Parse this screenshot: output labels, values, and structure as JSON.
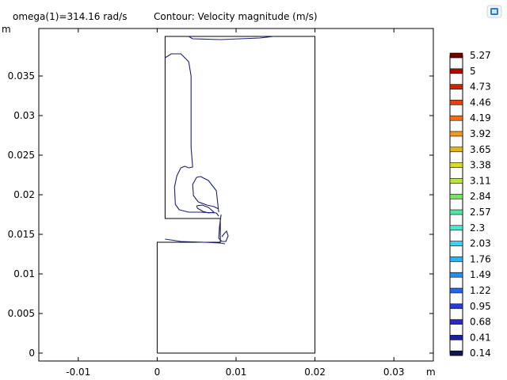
{
  "header": {
    "parameter": "omega(1)=314.16 rad/s",
    "title": "Contour: Velocity magnitude (m/s)"
  },
  "toolbar": {
    "icon": "plot-window-icon",
    "icon_color": "#2a7fd4"
  },
  "chart_data": {
    "type": "contour",
    "title": "Contour: Velocity magnitude (m/s)",
    "xlabel": "m",
    "ylabel": "m",
    "xlim": [
      -0.015,
      0.035
    ],
    "ylim": [
      -0.001,
      0.041
    ],
    "x_ticks": [
      {
        "value": -0.01,
        "label": "-0.01"
      },
      {
        "value": 0,
        "label": "0"
      },
      {
        "value": 0.01,
        "label": "0.01"
      },
      {
        "value": 0.02,
        "label": "0.02"
      },
      {
        "value": 0.03,
        "label": "0.03"
      }
    ],
    "y_ticks": [
      {
        "value": 0,
        "label": "0"
      },
      {
        "value": 0.005,
        "label": "0.005"
      },
      {
        "value": 0.01,
        "label": "0.01"
      },
      {
        "value": 0.015,
        "label": "0.015"
      },
      {
        "value": 0.02,
        "label": "0.02"
      },
      {
        "value": 0.025,
        "label": "0.025"
      },
      {
        "value": 0.03,
        "label": "0.03"
      },
      {
        "value": 0.035,
        "label": "0.035"
      }
    ],
    "geometry": [
      [
        0,
        0
      ],
      [
        0.02,
        0
      ],
      [
        0.02,
        0.04
      ],
      [
        0.001,
        0.04
      ],
      [
        0.001,
        0.017
      ],
      [
        0.008,
        0.017
      ],
      [
        0.008,
        0.014
      ],
      [
        0,
        0.014
      ],
      [
        0,
        0
      ]
    ],
    "contours": [
      {
        "level": 0.14,
        "color": "#1e1e78",
        "points": [
          [
            0.004,
            0.04
          ],
          [
            0.0045,
            0.0397
          ],
          [
            0.008,
            0.0396
          ],
          [
            0.013,
            0.0398
          ],
          [
            0.0148,
            0.04
          ]
        ]
      },
      {
        "level": 0.14,
        "color": "#1e1e78",
        "points": [
          [
            0.001,
            0.0373
          ],
          [
            0.0018,
            0.0378
          ],
          [
            0.003,
            0.0378
          ],
          [
            0.004,
            0.0368
          ],
          [
            0.0043,
            0.035
          ],
          [
            0.0043,
            0.026
          ],
          [
            0.0045,
            0.0235
          ],
          [
            0.004,
            0.0234
          ],
          [
            0.0035,
            0.0236
          ],
          [
            0.003,
            0.0234
          ],
          [
            0.0025,
            0.0224
          ],
          [
            0.0022,
            0.021
          ],
          [
            0.0023,
            0.0188
          ],
          [
            0.0028,
            0.0181
          ],
          [
            0.004,
            0.0178
          ],
          [
            0.0055,
            0.0178
          ],
          [
            0.0075,
            0.0177
          ],
          [
            0.0078,
            0.0173
          ]
        ]
      },
      {
        "level": 0.14,
        "color": "#1e1e78",
        "points": [
          [
            0.0078,
            0.0178
          ],
          [
            0.0075,
            0.0205
          ],
          [
            0.0065,
            0.0218
          ],
          [
            0.0055,
            0.0223
          ],
          [
            0.005,
            0.0222
          ],
          [
            0.0045,
            0.0213
          ],
          [
            0.0046,
            0.0199
          ],
          [
            0.0052,
            0.0191
          ],
          [
            0.0063,
            0.0187
          ],
          [
            0.0072,
            0.0185
          ],
          [
            0.0078,
            0.0182
          ]
        ]
      },
      {
        "level": 0.14,
        "color": "#1e1e78",
        "points": [
          [
            0.005,
            0.0186
          ],
          [
            0.0057,
            0.0187
          ],
          [
            0.0065,
            0.0184
          ],
          [
            0.0072,
            0.0178
          ],
          [
            0.0065,
            0.0177
          ],
          [
            0.0058,
            0.0179
          ],
          [
            0.0051,
            0.0183
          ],
          [
            0.005,
            0.0186
          ]
        ]
      },
      {
        "level": 0.14,
        "color": "#1e1e78",
        "points": [
          [
            0.0081,
            0.0175
          ],
          [
            0.0079,
            0.016
          ],
          [
            0.0078,
            0.0145
          ],
          [
            0.0082,
            0.0141
          ],
          [
            0.0087,
            0.0141
          ],
          [
            0.009,
            0.0148
          ],
          [
            0.0088,
            0.0154
          ],
          [
            0.0085,
            0.0151
          ],
          [
            0.0082,
            0.0147
          ]
        ]
      },
      {
        "level": 0.14,
        "color": "#1e1e78",
        "points": [
          [
            0.001,
            0.0144
          ],
          [
            0.003,
            0.0141
          ],
          [
            0.006,
            0.014
          ],
          [
            0.008,
            0.0139
          ],
          [
            0.0086,
            0.0138
          ]
        ]
      }
    ],
    "legend": {
      "placement": "right",
      "levels": [
        {
          "label": "5.27",
          "color": "#6e0000"
        },
        {
          "label": "5",
          "color": "#b40000"
        },
        {
          "label": "4.73",
          "color": "#dc1e00"
        },
        {
          "label": "4.46",
          "color": "#f03c0a"
        },
        {
          "label": "4.19",
          "color": "#f56e14"
        },
        {
          "label": "3.92",
          "color": "#f5961e"
        },
        {
          "label": "3.65",
          "color": "#e6b414"
        },
        {
          "label": "3.38",
          "color": "#dcdc1e"
        },
        {
          "label": "3.11",
          "color": "#b4e63c"
        },
        {
          "label": "2.84",
          "color": "#78e664"
        },
        {
          "label": "2.57",
          "color": "#50e6a0"
        },
        {
          "label": "2.3",
          "color": "#50e6d2"
        },
        {
          "label": "2.03",
          "color": "#3cd2f0"
        },
        {
          "label": "1.76",
          "color": "#28b4f0"
        },
        {
          "label": "1.49",
          "color": "#288cf0"
        },
        {
          "label": "1.22",
          "color": "#2864e6"
        },
        {
          "label": "0.95",
          "color": "#283cdc"
        },
        {
          "label": "0.68",
          "color": "#2828c8"
        },
        {
          "label": "0.41",
          "color": "#1e1ea0"
        },
        {
          "label": "0.14",
          "color": "#141450"
        }
      ]
    },
    "grid": false
  }
}
